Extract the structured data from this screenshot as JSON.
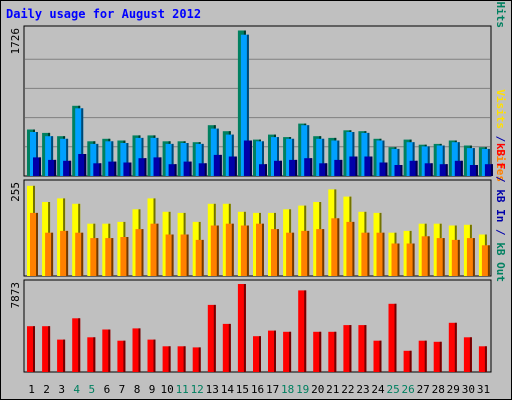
{
  "chart_data": {
    "type": "bar",
    "title": "Daily usage for August 2012",
    "categories": [
      "1",
      "2",
      "3",
      "4",
      "5",
      "6",
      "7",
      "8",
      "9",
      "10",
      "11",
      "12",
      "13",
      "14",
      "15",
      "16",
      "17",
      "18",
      "19",
      "20",
      "21",
      "22",
      "23",
      "24",
      "25",
      "26",
      "27",
      "28",
      "29",
      "30",
      "31"
    ],
    "weekend_days": [
      "4",
      "5",
      "11",
      "12",
      "18",
      "19",
      "25",
      "26"
    ],
    "panels": [
      {
        "name": "pages-files-hits",
        "ymax_label": "1726",
        "ymax": 1726,
        "side_labels": [
          {
            "text": "Pages",
            "color": "#00a0ff"
          },
          {
            "text": " / ",
            "color": "#0000aa"
          },
          {
            "text": "Files",
            "color": "#0000aa"
          },
          {
            "text": " / ",
            "color": "#0000aa"
          },
          {
            "text": "Hits",
            "color": "#008060"
          }
        ],
        "series": [
          {
            "name": "Hits",
            "color": "#008060",
            "values": [
              550,
              510,
              470,
              830,
              410,
              440,
              420,
              480,
              480,
              410,
              410,
              400,
              600,
              530,
              1720,
              430,
              490,
              460,
              620,
              470,
              450,
              540,
              530,
              440,
              340,
              430,
              370,
              380,
              420,
              360,
              340
            ]
          },
          {
            "name": "Files",
            "color": "#00a0ff",
            "values": [
              520,
              470,
              440,
              800,
              380,
              410,
              390,
              450,
              450,
              380,
              390,
              380,
              560,
              490,
              1670,
              410,
              460,
              440,
              600,
              440,
              420,
              520,
              510,
              420,
              320,
              400,
              350,
              360,
              400,
              330,
              320
            ]
          },
          {
            "name": "Pages",
            "color": "#0000aa",
            "values": [
              220,
              190,
              180,
              260,
              150,
              170,
              160,
              210,
              220,
              140,
              170,
              150,
              250,
              230,
              420,
              140,
              180,
              190,
              210,
              150,
              190,
              230,
              230,
              160,
              130,
              180,
              150,
              140,
              180,
              130,
              140
            ]
          }
        ]
      },
      {
        "name": "visits-sites",
        "ymax_label": "255",
        "ymax": 255,
        "side_labels": [
          {
            "text": "Visits",
            "color": "#ffe000"
          },
          {
            "text": " / ",
            "color": "#0000aa"
          },
          {
            "text": "Sites",
            "color": "#ff8000"
          }
        ],
        "series": [
          {
            "name": "Visits",
            "color": "#ffff00",
            "values": [
              250,
              205,
              215,
              200,
              145,
              145,
              150,
              185,
              215,
              178,
              175,
              150,
              200,
              200,
              178,
              175,
              175,
              185,
              195,
              205,
              240,
              220,
              178,
              175,
              120,
              125,
              145,
              145,
              140,
              142,
              115
            ]
          },
          {
            "name": "Sites",
            "color": "#ff8000",
            "values": [
              175,
              120,
              125,
              120,
              105,
              105,
              108,
              130,
              145,
              115,
              115,
              100,
              140,
              145,
              140,
              145,
              130,
              120,
              125,
              130,
              160,
              150,
              120,
              120,
              90,
              90,
              110,
              105,
              100,
              105,
              85
            ]
          }
        ]
      },
      {
        "name": "kbytes",
        "ymax_label": "7873",
        "ymax": 7873,
        "side_labels": [
          {
            "text": "kB F",
            "color": "#ff0000"
          },
          {
            "text": " / ",
            "color": "#0000aa"
          },
          {
            "text": "kB In",
            "color": "#0000aa"
          },
          {
            "text": " / ",
            "color": "#0000aa"
          },
          {
            "text": "kB Out",
            "color": "#008060"
          }
        ],
        "series": [
          {
            "name": "kB F",
            "color": "#ff0000",
            "values": [
              4100,
              4100,
              2900,
              4800,
              3100,
              3800,
              2800,
              3900,
              2900,
              2300,
              2300,
              2200,
              6000,
              4300,
              7873,
              3200,
              3700,
              3600,
              7300,
              3600,
              3600,
              4200,
              4200,
              2800,
              6100,
              1900,
              2800,
              2700,
              4400,
              3100,
              2300
            ]
          }
        ]
      }
    ]
  }
}
